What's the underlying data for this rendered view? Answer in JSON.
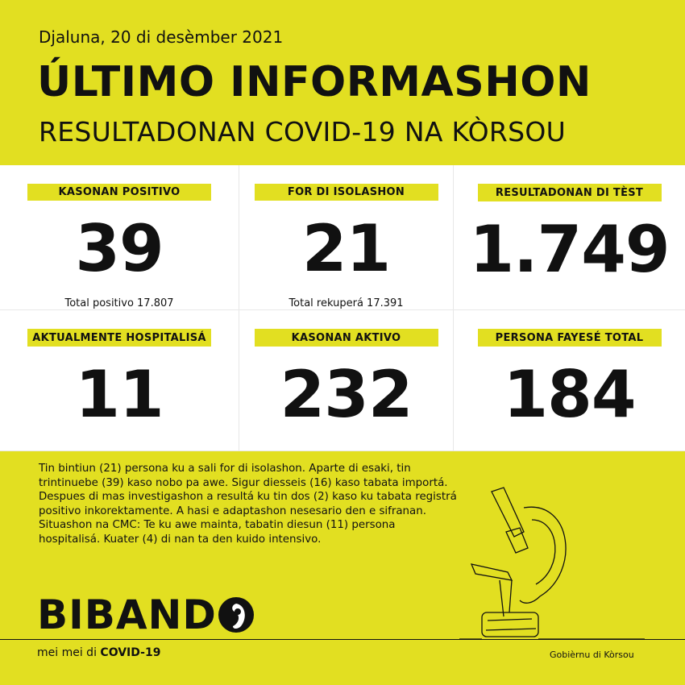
{
  "header": {
    "date": "Djaluna, 20 di desèmber 2021",
    "title": "ÚLTIMO INFORMASHON",
    "subtitle": "RESULTADONAN COVID-19 NA KÒRSOU"
  },
  "stats": [
    {
      "label": "KASONAN POSITIVO",
      "value": "39",
      "sub": "Total positivo 17.807"
    },
    {
      "label": "FOR DI ISOLASHON",
      "value": "21",
      "sub": "Total rekuperá 17.391"
    },
    {
      "label": "RESULTADONAN DI TÈST",
      "value": "1.749",
      "sub": ""
    },
    {
      "label": "AKTUALMENTE HOSPITALISÁ",
      "value": "11",
      "sub": ""
    },
    {
      "label": "KASONAN AKTIVO",
      "value": "232",
      "sub": ""
    },
    {
      "label": "PERSONA FAYESÉ TOTAL",
      "value": "184",
      "sub": ""
    }
  ],
  "body_text": "Tin bintiun (21) persona ku a sali for di isolashon. Aparte di esaki, tin trintinuebe (39) kaso nobo pa awe. Sigur diesseis (16) kaso tabata importá. Despues di mas investigashon a resultá ku tin dos (2) kaso ku tabata registrá positivo inkorektamente. A hasi e adaptashon nesesario den e sifranan. Situashon na CMC: Te ku awe mainta, tabatin diesun (11) persona hospitalisá. Kuater (4) di nan ta den kuido intensivo.",
  "footer": {
    "logo": "BIBAND",
    "tagline_pre": "mei mei di ",
    "tagline_bold": "COVID-19",
    "government": "Gobièrnu di Kòrsou"
  },
  "colors": {
    "accent": "#e2df21",
    "text": "#111111"
  },
  "icons": [
    "microscope-icon",
    "logo-o-icon"
  ]
}
